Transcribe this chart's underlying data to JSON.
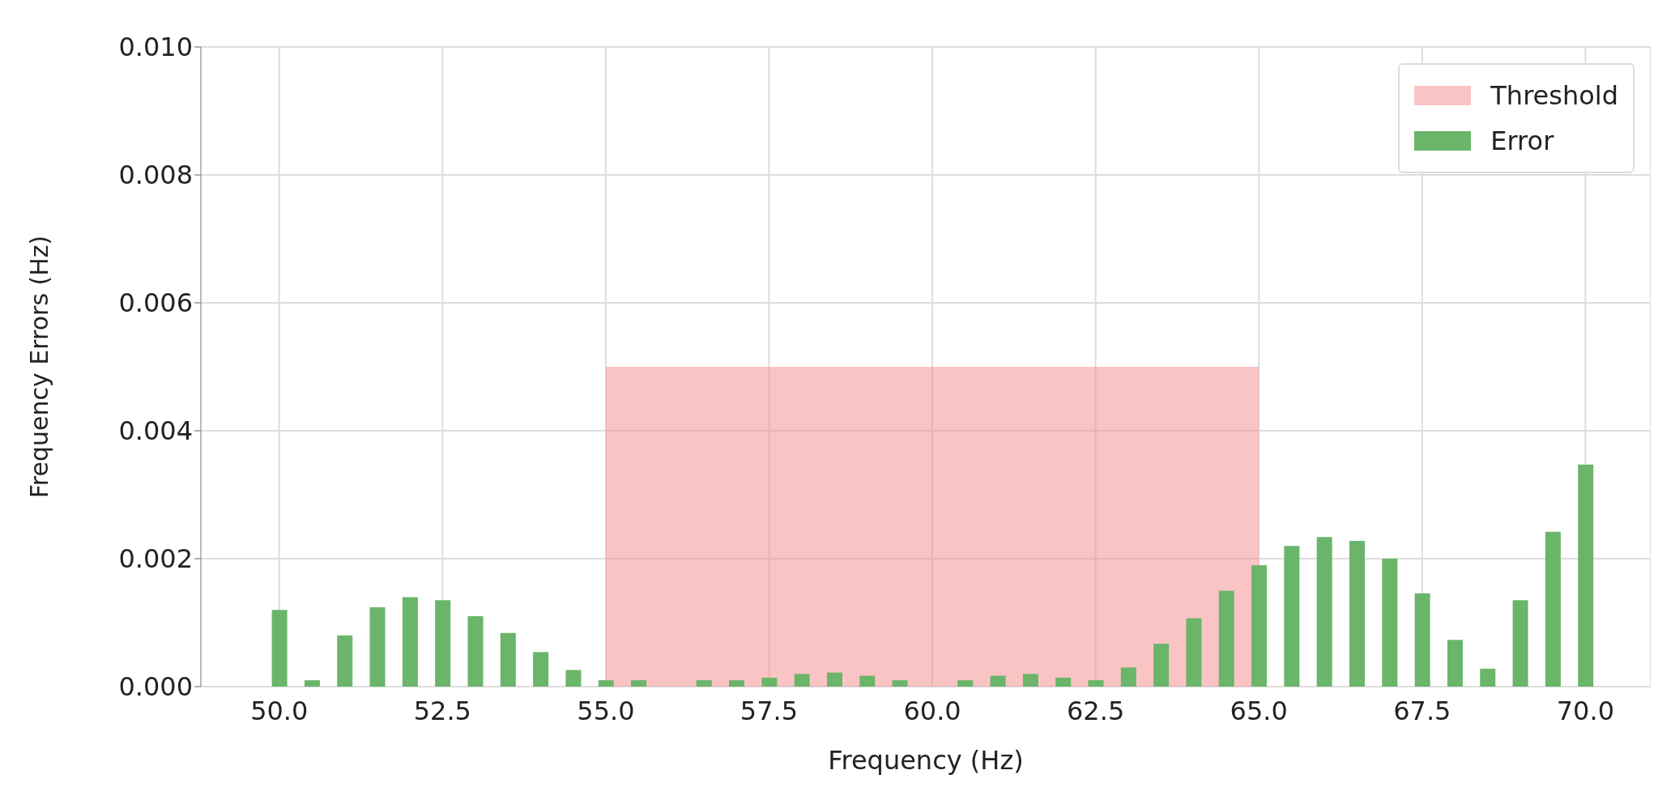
{
  "chart_data": {
    "type": "bar",
    "xlabel": "Frequency (Hz)",
    "ylabel": "Frequency Errors (Hz)",
    "xlim": [
      48.8,
      71
    ],
    "xticks": [
      {
        "value": 50,
        "label": "50.0"
      },
      {
        "value": 52.5,
        "label": "52.5"
      },
      {
        "value": 55,
        "label": "55.0"
      },
      {
        "value": 57.5,
        "label": "57.5"
      },
      {
        "value": 60,
        "label": "60.0"
      },
      {
        "value": 62.5,
        "label": "62.5"
      },
      {
        "value": 65,
        "label": "65.0"
      },
      {
        "value": 67.5,
        "label": "67.5"
      },
      {
        "value": 70,
        "label": "70.0"
      }
    ],
    "ylim": [
      0,
      0.01
    ],
    "yticks": [
      {
        "value": 0,
        "label": "0.000"
      },
      {
        "value": 0.002,
        "label": "0.002"
      },
      {
        "value": 0.004,
        "label": "0.004"
      },
      {
        "value": 0.006,
        "label": "0.006"
      },
      {
        "value": 0.008,
        "label": "0.008"
      },
      {
        "value": 0.01,
        "label": "0.010"
      }
    ],
    "grid": true,
    "legend": "top right",
    "series": [
      {
        "name": "Error",
        "color": "#6ab56a",
        "x": [
          50,
          50.5,
          51,
          51.5,
          52,
          52.5,
          53,
          53.5,
          54,
          54.5,
          55,
          55.5,
          56,
          56.5,
          57,
          57.5,
          58,
          58.5,
          59,
          59.5,
          60,
          60.5,
          61,
          61.5,
          62,
          62.5,
          63,
          63.5,
          64,
          64.5,
          65,
          65.5,
          66,
          66.5,
          67,
          67.5,
          68,
          68.5,
          69,
          69.5,
          70
        ],
        "values": [
          0.0012,
          0.0001,
          0.0008,
          0.00124,
          0.0014,
          0.00135,
          0.0011,
          0.00084,
          0.00054,
          0.00026,
          0.0001,
          0.0001,
          0,
          0.0001,
          0.0001,
          0.00014,
          0.0002,
          0.00022,
          0.00017,
          0.0001,
          0,
          0.0001,
          0.00017,
          0.0002,
          0.00014,
          0.0001,
          0.0003,
          0.00067,
          0.00107,
          0.0015,
          0.0019,
          0.0022,
          0.00234,
          0.00228,
          0.002,
          0.00146,
          0.00073,
          0.00028,
          0.00135,
          0.00242,
          0.00347
        ]
      },
      {
        "name": "Threshold",
        "type": "area",
        "color": "#f58a8a",
        "x": [
          55,
          65
        ],
        "values": [
          0.005,
          0.005
        ]
      }
    ]
  }
}
